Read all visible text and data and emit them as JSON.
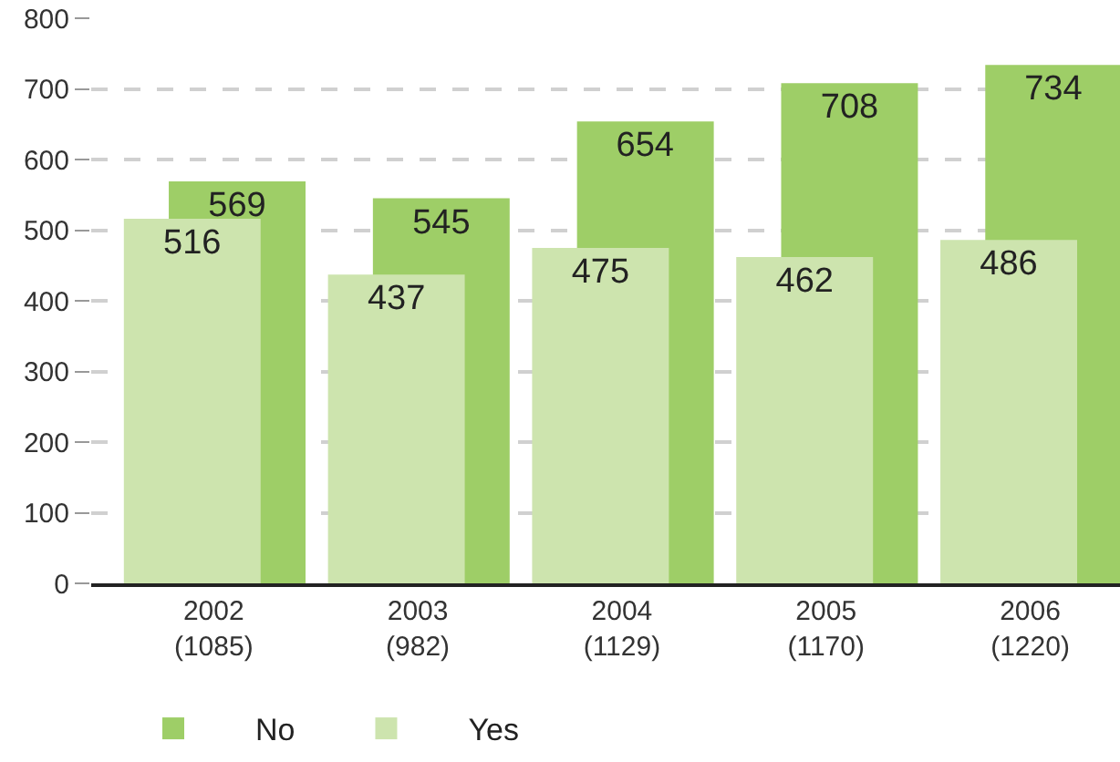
{
  "chart_data": {
    "type": "bar",
    "categories": [
      "2002\n(1085)",
      "2003\n(982)",
      "2004\n(1129)",
      "2005\n(1170)",
      "2006\n(1220)"
    ],
    "series": [
      {
        "name": "No",
        "color": "#9ece67",
        "values": [
          569,
          545,
          654,
          708,
          734
        ]
      },
      {
        "name": "Yes",
        "color": "#cde4ae",
        "values": [
          516,
          437,
          475,
          462,
          486
        ]
      }
    ],
    "ylim": [
      0,
      800
    ],
    "yticks": [
      0,
      100,
      200,
      300,
      400,
      500,
      600,
      700,
      800
    ],
    "grid": "y",
    "legend": "bottom left",
    "data_labels": true
  }
}
